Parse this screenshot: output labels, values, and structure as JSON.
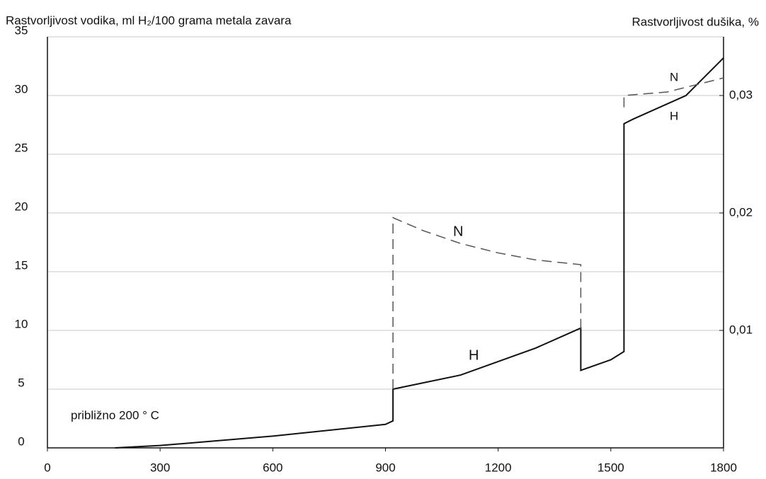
{
  "chart_data": {
    "type": "line",
    "y_label": "Rastvorljivost vodika, ml H₂/100 grama metala zavara",
    "y2_label": "Rastvorljivost dušika, %",
    "xlim": [
      0,
      1800
    ],
    "xticks": [
      0,
      300,
      600,
      900,
      1200,
      1500,
      1800
    ],
    "ylim": [
      0,
      35
    ],
    "yticks": [
      0,
      5,
      10,
      15,
      20,
      25,
      30,
      35
    ],
    "y2lim": [
      0,
      0.035
    ],
    "y2ticks": [
      {
        "value": 0.01,
        "label": "0,01"
      },
      {
        "value": 0.02,
        "label": "0,02"
      },
      {
        "value": 0.03,
        "label": "0,03"
      }
    ],
    "grid": true,
    "series": [
      {
        "name": "H",
        "color": "#111111",
        "dash": false,
        "x": [
          180,
          300,
          600,
          900,
          920,
          920,
          1100,
          1300,
          1420,
          1420,
          1500,
          1535,
          1535,
          1560,
          1700,
          1800
        ],
        "values": [
          0,
          0.2,
          1,
          2,
          2.3,
          5,
          6.2,
          8.5,
          10.2,
          6.6,
          7.5,
          8.2,
          27.6,
          28,
          30,
          33.2
        ]
      },
      {
        "name": "N",
        "color": "#555555",
        "dash": true,
        "axis": "y2",
        "x": [
          920,
          920,
          1000,
          1100,
          1200,
          1300,
          1420,
          1420,
          1480,
          1535,
          1535,
          1650,
          1800
        ],
        "values": [
          0.005,
          0.0196,
          0.0185,
          0.0174,
          0.0166,
          0.016,
          0.0156,
          0.0101,
          null,
          0.029,
          0.03,
          0.0303,
          0.0315
        ]
      }
    ],
    "annotations": [
      "N",
      "H",
      "N",
      "H",
      "približno 200 ° C"
    ]
  }
}
